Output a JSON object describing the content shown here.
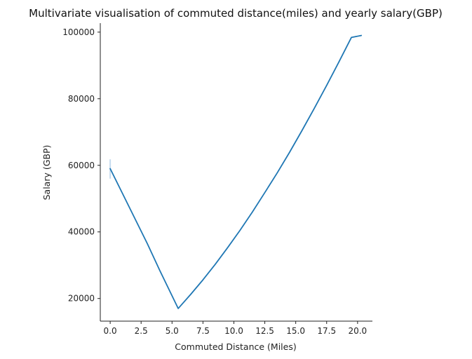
{
  "chart_data": {
    "type": "line",
    "title": "Multivariate visualisation of commuted distance(miles) and yearly salary(GBP)",
    "xlabel": "Commuted Distance (Miles)",
    "ylabel": "Salary (GBP)",
    "xlim": [
      -0.8,
      21.2
    ],
    "ylim": [
      13200,
      102700
    ],
    "x_ticks": [
      0.0,
      2.5,
      5.0,
      7.5,
      10.0,
      12.5,
      15.0,
      17.5,
      20.0
    ],
    "x_tick_labels": [
      "0.0",
      "2.5",
      "5.0",
      "7.5",
      "10.0",
      "12.5",
      "15.0",
      "17.5",
      "20.0"
    ],
    "y_ticks": [
      20000,
      40000,
      60000,
      80000,
      100000
    ],
    "y_tick_labels": [
      "20000",
      "40000",
      "60000",
      "80000",
      "100000"
    ],
    "grid": false,
    "color": "#1f77b4",
    "band_color": "#c6dbef",
    "series": [
      {
        "x": [
          0.0,
          1.0,
          2.0,
          3.0,
          4.0,
          5.5,
          6.5,
          7.5,
          8.5,
          9.5,
          10.5,
          11.5,
          12.5,
          13.5,
          14.5,
          15.5,
          16.5,
          17.5,
          18.5,
          19.5,
          20.3
        ],
        "y": [
          59000,
          51500,
          44000,
          36500,
          28500,
          17000,
          21200,
          25600,
          30300,
          35300,
          40500,
          46000,
          51800,
          57700,
          63900,
          70400,
          77100,
          84000,
          91100,
          98400,
          99000
        ]
      }
    ],
    "confidence_band": {
      "x": 0.0,
      "y_low": 56000,
      "y_high": 61800
    }
  }
}
